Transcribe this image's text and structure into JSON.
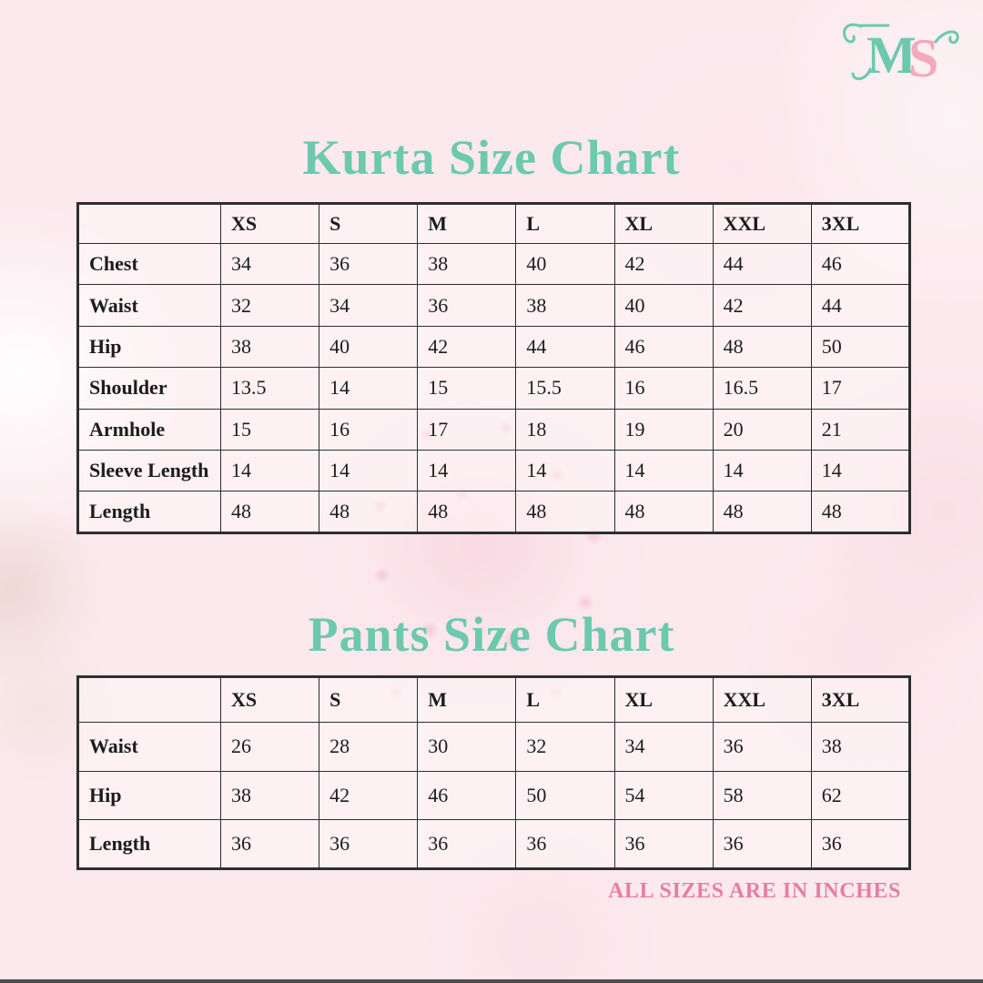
{
  "page": {
    "background_color": "#fbe9ee",
    "note": "ALL SIZES ARE IN INCHES",
    "note_color": "#e87da1",
    "accent_teal": "#6cc9ae",
    "accent_pink": "#f4a9bc"
  },
  "logo": {
    "letter_m": "M",
    "letter_s": "S",
    "m_color": "#6cc9ae",
    "s_color": "#f4a9bc"
  },
  "kurta_chart": {
    "title": "Kurta Size Chart",
    "columns": [
      "",
      "XS",
      "S",
      "M",
      "L",
      "XL",
      "XXL",
      "3XL"
    ],
    "rows": [
      {
        "label": "Chest",
        "values": [
          "34",
          "36",
          "38",
          "40",
          "42",
          "44",
          "46"
        ]
      },
      {
        "label": "Waist",
        "values": [
          "32",
          "34",
          "36",
          "38",
          "40",
          "42",
          "44"
        ]
      },
      {
        "label": "Hip",
        "values": [
          "38",
          "40",
          "42",
          "44",
          "46",
          "48",
          "50"
        ]
      },
      {
        "label": "Shoulder",
        "values": [
          "13.5",
          "14",
          "15",
          "15.5",
          "16",
          "16.5",
          "17"
        ]
      },
      {
        "label": "Armhole",
        "values": [
          "15",
          "16",
          "17",
          "18",
          "19",
          "20",
          "21"
        ]
      },
      {
        "label": "Sleeve Length",
        "values": [
          "14",
          "14",
          "14",
          "14",
          "14",
          "14",
          "14"
        ]
      },
      {
        "label": "Length",
        "values": [
          "48",
          "48",
          "48",
          "48",
          "48",
          "48",
          "48"
        ]
      }
    ]
  },
  "pants_chart": {
    "title": "Pants Size Chart",
    "columns": [
      "",
      "XS",
      "S",
      "M",
      "L",
      "XL",
      "XXL",
      "3XL"
    ],
    "rows": [
      {
        "label": "Waist",
        "values": [
          "26",
          "28",
          "30",
          "32",
          "34",
          "36",
          "38"
        ]
      },
      {
        "label": "Hip",
        "values": [
          "38",
          "42",
          "46",
          "50",
          "54",
          "58",
          "62"
        ]
      },
      {
        "label": "Length",
        "values": [
          "36",
          "36",
          "36",
          "36",
          "36",
          "36",
          "36"
        ]
      }
    ]
  }
}
